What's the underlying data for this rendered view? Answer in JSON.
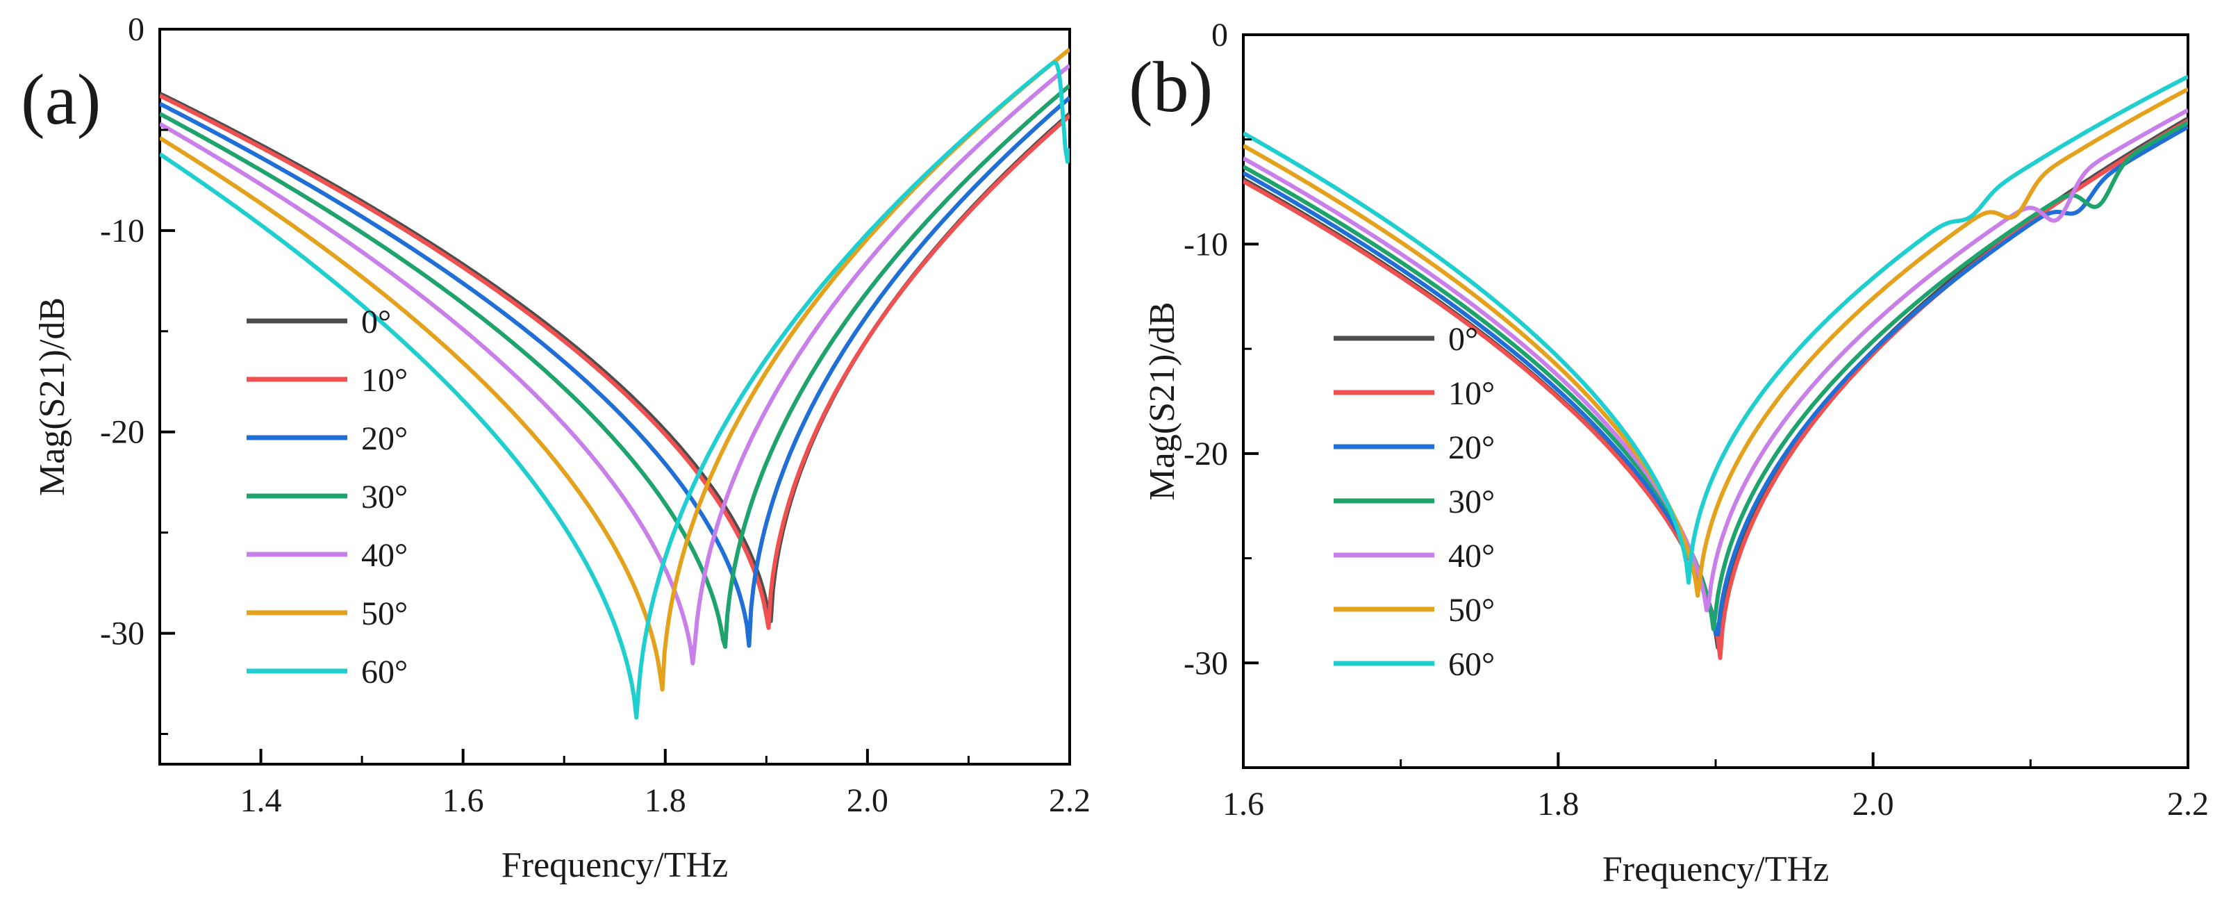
{
  "chart_data": [
    {
      "panel_label": "(a)",
      "type": "line",
      "xlabel": "Frequency/THz",
      "ylabel": "Mag(S21)/dB",
      "xlim": [
        1.3,
        2.2
      ],
      "ylim": [
        -36.5,
        0
      ],
      "xticks": [
        1.4,
        1.6,
        1.8,
        2.0,
        2.2
      ],
      "xtick_labels": [
        "1.4",
        "1.6",
        "1.8",
        "2.0",
        "2.2"
      ],
      "yticks": [
        0,
        -10,
        -20,
        -30
      ],
      "ytick_labels": [
        "0",
        "-10",
        "-20",
        "-30"
      ],
      "legend_position": "left",
      "series": [
        {
          "name": "0°",
          "color": "#4d4d4d",
          "f0": 1.904,
          "depth": -30.2,
          "baseline": -3.2,
          "end_y": -4.2,
          "notch": false
        },
        {
          "name": "10°",
          "color": "#f0504f",
          "f0": 1.902,
          "depth": -30.3,
          "baseline": -3.3,
          "end_y": -4.3,
          "notch": false
        },
        {
          "name": "20°",
          "color": "#1f6fd6",
          "f0": 1.883,
          "depth": -30.9,
          "baseline": -3.7,
          "end_y": -3.4,
          "notch": false
        },
        {
          "name": "30°",
          "color": "#1ea36c",
          "f0": 1.859,
          "depth": -31.5,
          "baseline": -4.2,
          "end_y": -2.8,
          "notch": false
        },
        {
          "name": "40°",
          "color": "#c97fea",
          "f0": 1.828,
          "depth": -32.3,
          "baseline": -4.7,
          "end_y": -1.8,
          "notch": false
        },
        {
          "name": "50°",
          "color": "#e4a11b",
          "f0": 1.797,
          "depth": -33.4,
          "baseline": -5.4,
          "end_y": -1.0,
          "notch": false
        },
        {
          "name": "60°",
          "color": "#1fcfcf",
          "f0": 1.772,
          "depth": -34.9,
          "baseline": -6.2,
          "end_y": -1.0,
          "notch": true,
          "notch_f": 2.198
        }
      ]
    },
    {
      "panel_label": "(b)",
      "type": "line",
      "xlabel": "Frequency/THz",
      "ylabel": "Mag(S21)/dB",
      "xlim": [
        1.6,
        2.2
      ],
      "ylim": [
        -35,
        0
      ],
      "xticks": [
        1.6,
        1.8,
        2.0,
        2.2
      ],
      "xtick_labels": [
        "1.6",
        "1.8",
        "2.0",
        "2.2"
      ],
      "yticks": [
        0,
        -10,
        -20,
        -30
      ],
      "ytick_labels": [
        "0",
        "-10",
        "-20",
        "-30"
      ],
      "legend_position": "left",
      "series": [
        {
          "name": "0°",
          "color": "#4d4d4d",
          "f0": 1.902,
          "depth": -30.0,
          "baseline": -6.9,
          "end_y": -4.0,
          "ripple_f": 2.155,
          "ripple_amp": 0.0
        },
        {
          "name": "10°",
          "color": "#f0504f",
          "f0": 1.903,
          "depth": -30.1,
          "baseline": -7.0,
          "end_y": -4.1,
          "ripple_f": 2.16,
          "ripple_amp": 0.0
        },
        {
          "name": "20°",
          "color": "#1f6fd6",
          "f0": 1.901,
          "depth": -29.6,
          "baseline": -6.6,
          "end_y": -4.4,
          "ripple_f": 2.13,
          "ripple_amp": 0.9
        },
        {
          "name": "30°",
          "color": "#1ea36c",
          "f0": 1.899,
          "depth": -29.0,
          "baseline": -6.3,
          "end_y": -4.2,
          "ripple_f": 2.143,
          "ripple_amp": 1.5
        },
        {
          "name": "40°",
          "color": "#c97fea",
          "f0": 1.895,
          "depth": -28.3,
          "baseline": -5.9,
          "end_y": -3.6,
          "ripple_f": 2.117,
          "ripple_amp": 1.6
        },
        {
          "name": "50°",
          "color": "#e4a11b",
          "f0": 1.889,
          "depth": -27.4,
          "baseline": -5.3,
          "end_y": -2.6,
          "ripple_f": 2.09,
          "ripple_amp": 1.2
        },
        {
          "name": "60°",
          "color": "#1fcfcf",
          "f0": 1.883,
          "depth": -26.5,
          "baseline": -4.7,
          "end_y": -2.0,
          "ripple_f": 2.062,
          "ripple_amp": 0.6
        }
      ]
    }
  ]
}
